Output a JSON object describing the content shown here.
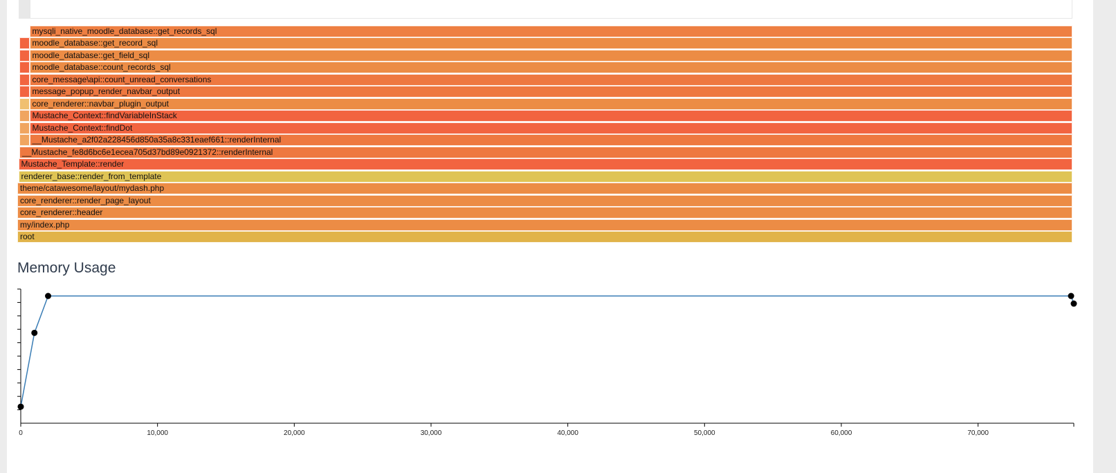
{
  "flamegraph": {
    "frames": [
      {
        "label": "root",
        "color": "#e1b349",
        "depth": 0,
        "start": 0.0,
        "end": 1.0
      },
      {
        "label": "my/index.php",
        "color": "#ec8c45",
        "depth": 1,
        "start": 0.0,
        "end": 1.0
      },
      {
        "label": "core_renderer::header",
        "color": "#ec8c45",
        "depth": 2,
        "start": 0.0,
        "end": 1.0
      },
      {
        "label": "core_renderer::render_page_layout",
        "color": "#ec8c45",
        "depth": 3,
        "start": 0.0,
        "end": 1.0
      },
      {
        "label": "theme/catawesome/layout/mydash.php",
        "color": "#ec8c45",
        "depth": 4,
        "start": 0.0,
        "end": 1.0
      },
      {
        "label": "renderer_base::render_from_template",
        "color": "#dfc455",
        "depth": 5,
        "start": 0.001,
        "end": 1.0
      },
      {
        "label": "Mustache_Template::render",
        "color": "#f26440",
        "depth": 6,
        "start": 0.001,
        "end": 1.0
      },
      {
        "label": "__Mustache_fe8d6bc6e1ecea705d37bd89e0921372::renderInternal",
        "color": "#ee7840",
        "depth": 7,
        "start": 0.002,
        "end": 1.0
      },
      {
        "label": "",
        "color": "#f0a560",
        "depth": 8,
        "start": 0.002,
        "end": 0.0115
      },
      {
        "label": "__Mustache_a2f02a228456d850a35a8c331eaef661::renderInternal",
        "color": "#ee7840",
        "depth": 8,
        "start": 0.0115,
        "end": 1.0
      },
      {
        "label": "",
        "color": "#f0a560",
        "depth": 9,
        "start": 0.002,
        "end": 0.0115
      },
      {
        "label": "Mustache_Context::findDot",
        "color": "#f26440",
        "depth": 9,
        "start": 0.0115,
        "end": 1.0
      },
      {
        "label": "",
        "color": "#f0a560",
        "depth": 10,
        "start": 0.002,
        "end": 0.0115
      },
      {
        "label": "Mustache_Context::findVariableInStack",
        "color": "#f26440",
        "depth": 10,
        "start": 0.0115,
        "end": 1.0
      },
      {
        "label": "",
        "color": "#f0c070",
        "depth": 11,
        "start": 0.002,
        "end": 0.0115
      },
      {
        "label": "core_renderer::navbar_plugin_output",
        "color": "#ec8c45",
        "depth": 11,
        "start": 0.0115,
        "end": 1.0
      },
      {
        "label": "",
        "color": "#f26440",
        "depth": 12,
        "start": 0.002,
        "end": 0.0115
      },
      {
        "label": "message_popup_render_navbar_output",
        "color": "#ee7840",
        "depth": 12,
        "start": 0.0115,
        "end": 1.0
      },
      {
        "label": "",
        "color": "#f26440",
        "depth": 13,
        "start": 0.002,
        "end": 0.0115
      },
      {
        "label": "core_message\\api::count_unread_conversations",
        "color": "#ee7840",
        "depth": 13,
        "start": 0.0115,
        "end": 1.0
      },
      {
        "label": "",
        "color": "#f26440",
        "depth": 14,
        "start": 0.002,
        "end": 0.0115
      },
      {
        "label": "moodle_database::count_records_sql",
        "color": "#ec8c45",
        "depth": 14,
        "start": 0.0115,
        "end": 1.0
      },
      {
        "label": "",
        "color": "#f26440",
        "depth": 15,
        "start": 0.002,
        "end": 0.0115
      },
      {
        "label": "moodle_database::get_field_sql",
        "color": "#ec8c45",
        "depth": 15,
        "start": 0.0115,
        "end": 1.0
      },
      {
        "label": "",
        "color": "#f26440",
        "depth": 16,
        "start": 0.002,
        "end": 0.0115
      },
      {
        "label": "moodle_database::get_record_sql",
        "color": "#ec8c45",
        "depth": 16,
        "start": 0.0115,
        "end": 1.0
      },
      {
        "label": "mysqli_native_moodle_database::get_records_sql",
        "color": "#ee7f42",
        "depth": 17,
        "start": 0.0115,
        "end": 1.0
      }
    ]
  },
  "memory": {
    "title": "Memory Usage",
    "chart_data": {
      "type": "line",
      "x": [
        0,
        1000,
        2000,
        76800,
        77000
      ],
      "y": [
        0.13,
        0.71,
        1.0,
        1.0,
        0.94
      ],
      "x_ticks": [
        0,
        10000,
        20000,
        30000,
        40000,
        50000,
        60000,
        70000
      ],
      "x_tick_labels": [
        "0",
        "10,000",
        "20,000",
        "30,000",
        "40,000",
        "50,000",
        "60,000",
        "70,000"
      ],
      "xlim": [
        0,
        77000
      ],
      "ylim": [
        0.0,
        1.0
      ],
      "y_tick_count": 10,
      "line_color": "#3a7db5",
      "point_color": "#000000"
    }
  }
}
